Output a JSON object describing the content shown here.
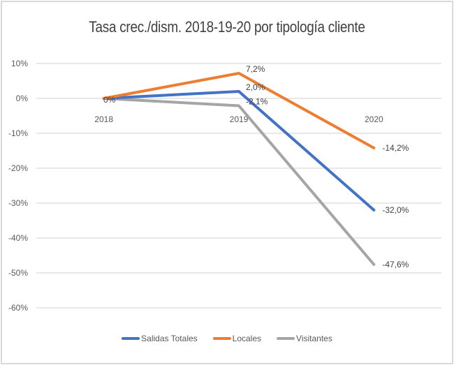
{
  "chart_data": {
    "type": "line",
    "title": "Tasa crec./dism. 2018-19-20 por tipología cliente",
    "xlabel": "",
    "ylabel": "",
    "categories": [
      "2018",
      "2019",
      "2020"
    ],
    "ylim": [
      -60,
      10
    ],
    "yticks": [
      "10%",
      "0%",
      "-10%",
      "-20%",
      "-30%",
      "-40%",
      "-50%",
      "-60%"
    ],
    "grid": true,
    "legend_position": "bottom",
    "series": [
      {
        "name": "Salidas Totales",
        "color": "#4472c4",
        "values": [
          0,
          2.0,
          -32.0
        ],
        "labels": [
          "0%",
          "2,0%",
          "-32,0%"
        ]
      },
      {
        "name": "Locales",
        "color": "#ed7d31",
        "values": [
          0,
          7.2,
          -14.2
        ],
        "labels": [
          "",
          "7,2%",
          "-14,2%"
        ]
      },
      {
        "name": "Visitantes",
        "color": "#a5a5a5",
        "values": [
          0,
          -2.1,
          -47.6
        ],
        "labels": [
          "",
          "-2,1%",
          "-47,6%"
        ]
      }
    ]
  }
}
